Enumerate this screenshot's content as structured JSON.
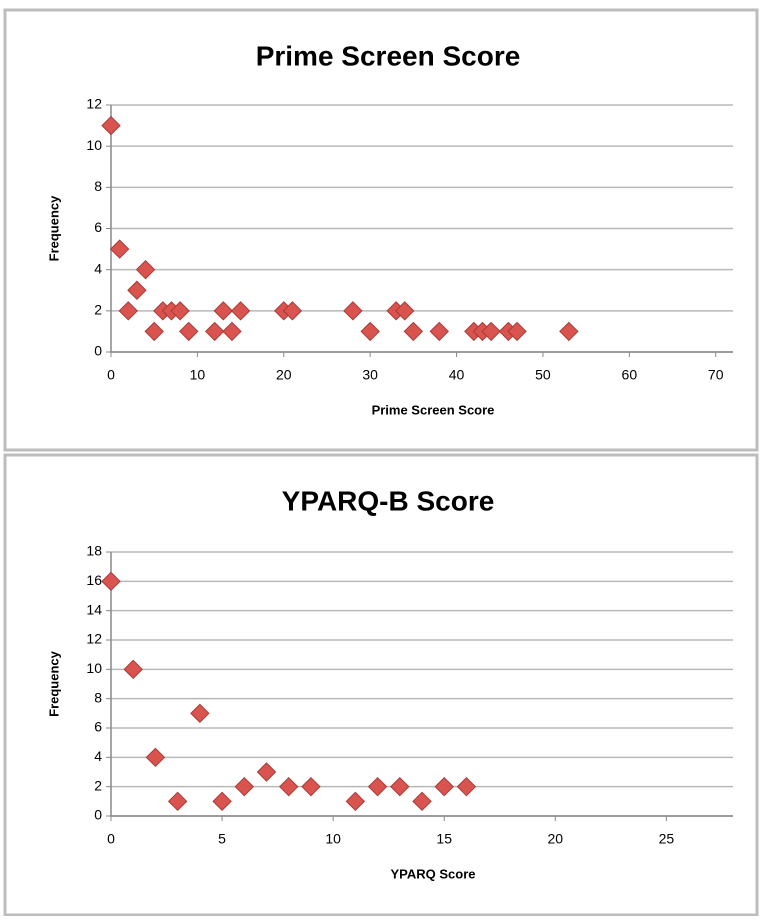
{
  "chart_data": [
    {
      "type": "scatter",
      "title": "Prime Screen Score",
      "x_label": "Prime Screen Score",
      "y_label": "Frequency",
      "color": "#d9534f",
      "x": [
        0,
        1,
        2,
        3,
        4,
        5,
        6,
        7,
        8,
        9,
        12,
        13,
        14,
        15,
        20,
        21,
        28,
        30,
        33,
        34,
        35,
        38,
        42,
        43,
        44,
        46,
        47,
        53
      ],
      "values": [
        11,
        5,
        2,
        3,
        4,
        1,
        2,
        2,
        2,
        1,
        1,
        2,
        1,
        2,
        2,
        2,
        2,
        1,
        2,
        2,
        1,
        1,
        1,
        1,
        1,
        1,
        1,
        1
      ],
      "xlim": [
        0,
        72
      ],
      "xticks": [
        0,
        10,
        20,
        30,
        40,
        50,
        60,
        70
      ],
      "ylim": [
        0,
        12
      ],
      "yticks": [
        0,
        2,
        4,
        6,
        8,
        10,
        12
      ],
      "grid": true
    },
    {
      "type": "scatter",
      "title": "YPARQ-B Score",
      "x_label": "YPARQ Score",
      "y_label": "Frequency",
      "color": "#d9534f",
      "x": [
        0,
        1,
        2,
        3,
        4,
        5,
        6,
        7,
        8,
        9,
        11,
        12,
        13,
        14,
        15,
        16
      ],
      "values": [
        16,
        10,
        4,
        1,
        7,
        1,
        2,
        3,
        2,
        2,
        1,
        2,
        2,
        1,
        2,
        2
      ],
      "xlim": [
        0,
        28
      ],
      "xticks": [
        0,
        5,
        10,
        15,
        20,
        25
      ],
      "ylim": [
        0,
        18
      ],
      "yticks": [
        0,
        2,
        4,
        6,
        8,
        10,
        12,
        14,
        16,
        18
      ],
      "grid": true
    }
  ]
}
